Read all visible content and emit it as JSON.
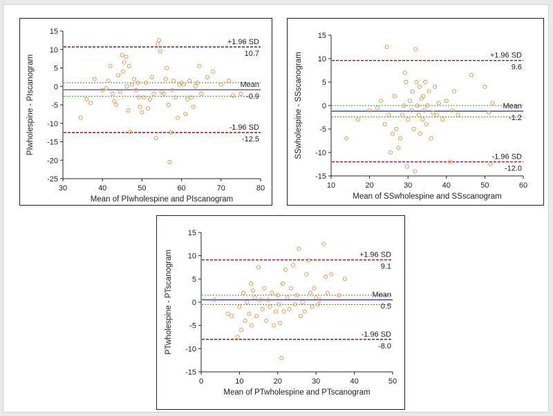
{
  "chart_data": [
    {
      "type": "scatter",
      "title": "",
      "xlabel": "Mean of PIwholespine and PIscanogram",
      "ylabel": "PIwholespine - PIscanogram",
      "xlim": [
        30,
        80
      ],
      "ylim": [
        -25,
        15
      ],
      "xticks": [
        30,
        40,
        50,
        60,
        70,
        80
      ],
      "yticks": [
        -25,
        -20,
        -15,
        -10,
        -5,
        0,
        5,
        10,
        15
      ],
      "reference_lines": [
        {
          "label": "+1.96 SD",
          "value": 10.7,
          "value_label": "10.7",
          "color": "#8b1a1a",
          "style": "dashed"
        },
        {
          "label": "Mean",
          "value": -0.9,
          "value_label": "-0.9",
          "color": "#2a2a9a",
          "style": "solid"
        },
        {
          "label": "-1.96 SD",
          "value": -12.5,
          "value_label": "-12.5",
          "color": "#8b1a1a",
          "style": "dashed"
        }
      ],
      "ci_lines": [
        1.0,
        -2.7
      ],
      "points": [
        [
          34.5,
          -8.5
        ],
        [
          36,
          -3.5
        ],
        [
          37,
          -4.5
        ],
        [
          38,
          2
        ],
        [
          40,
          -1
        ],
        [
          41,
          -0.5
        ],
        [
          41.5,
          1.5
        ],
        [
          42,
          5.5
        ],
        [
          42.5,
          -2
        ],
        [
          43,
          -4
        ],
        [
          43.5,
          -5
        ],
        [
          44,
          3
        ],
        [
          44.5,
          -1.5
        ],
        [
          45,
          8.5
        ],
        [
          45.2,
          4
        ],
        [
          45.5,
          6.5
        ],
        [
          46,
          8
        ],
        [
          46.2,
          0
        ],
        [
          46.5,
          -6.5
        ],
        [
          46.7,
          5.5
        ],
        [
          47,
          -12.3
        ],
        [
          47.5,
          0.5
        ],
        [
          48,
          2
        ],
        [
          48.5,
          -1
        ],
        [
          49,
          1
        ],
        [
          49.2,
          -3
        ],
        [
          49.5,
          -5.5
        ],
        [
          50,
          -7
        ],
        [
          50.5,
          -3
        ],
        [
          51,
          1
        ],
        [
          51.5,
          -6
        ],
        [
          52,
          -3.5
        ],
        [
          52.5,
          2.5
        ],
        [
          53,
          -2
        ],
        [
          53.5,
          -14
        ],
        [
          54,
          11.5
        ],
        [
          54.3,
          12.5
        ],
        [
          54.6,
          9.5
        ],
        [
          55,
          -1.5
        ],
        [
          55.5,
          -2
        ],
        [
          56,
          2
        ],
        [
          56.3,
          5
        ],
        [
          56.7,
          -5
        ],
        [
          57,
          -20.5
        ],
        [
          57.3,
          -12.5
        ],
        [
          57.6,
          -1
        ],
        [
          58,
          1.5
        ],
        [
          58.5,
          -3
        ],
        [
          59,
          -8.5
        ],
        [
          59.5,
          0.5
        ],
        [
          60,
          1
        ],
        [
          60.5,
          0.5
        ],
        [
          61,
          -7.5
        ],
        [
          61.5,
          -3.5
        ],
        [
          62,
          1.5
        ],
        [
          62.5,
          -3
        ],
        [
          63,
          -5.5
        ],
        [
          63.5,
          0
        ],
        [
          64,
          1
        ],
        [
          64.5,
          5.5
        ],
        [
          65,
          -2
        ],
        [
          66.5,
          2.5
        ],
        [
          68,
          4
        ],
        [
          70,
          0.5
        ],
        [
          72,
          1.5
        ],
        [
          73,
          -2.5
        ],
        [
          75,
          -2
        ]
      ]
    },
    {
      "type": "scatter",
      "title": "",
      "xlabel": "Mean of SSwholespine and SSscanogram",
      "ylabel": "SSwholespine - SSscanogram",
      "xlim": [
        10,
        60
      ],
      "ylim": [
        -15,
        15
      ],
      "xticks": [
        10,
        20,
        30,
        40,
        50,
        60
      ],
      "yticks": [
        -15,
        -10,
        -5,
        0,
        5,
        10,
        15
      ],
      "reference_lines": [
        {
          "label": "+1.96 SD",
          "value": 9.6,
          "value_label": "9.6",
          "color": "#8b1a1a",
          "style": "dashed"
        },
        {
          "label": "Mean",
          "value": -1.2,
          "value_label": "-1.2",
          "color": "#2a2a9a",
          "style": "solid"
        },
        {
          "label": "-1.96 SD",
          "value": -12.0,
          "value_label": "-12.0",
          "color": "#8b1a1a",
          "style": "dashed"
        }
      ],
      "ci_lines": [
        0.0,
        -2.4
      ],
      "points": [
        [
          14,
          -7
        ],
        [
          17,
          -3
        ],
        [
          20,
          -1
        ],
        [
          22,
          -0.5
        ],
        [
          23,
          1
        ],
        [
          24,
          -4
        ],
        [
          24.5,
          12.5
        ],
        [
          25,
          -2
        ],
        [
          25.5,
          -10
        ],
        [
          26,
          -6
        ],
        [
          26.5,
          2
        ],
        [
          27,
          -5
        ],
        [
          27.5,
          -9
        ],
        [
          28,
          -7
        ],
        [
          28.5,
          -2
        ],
        [
          29,
          0
        ],
        [
          29.2,
          7
        ],
        [
          29.5,
          5
        ],
        [
          29.8,
          -13
        ],
        [
          30,
          -3
        ],
        [
          30.5,
          1
        ],
        [
          31,
          -1
        ],
        [
          31.2,
          3
        ],
        [
          31.5,
          -5
        ],
        [
          31.8,
          -14
        ],
        [
          32,
          12
        ],
        [
          32.2,
          5
        ],
        [
          32.5,
          0
        ],
        [
          32.8,
          -2
        ],
        [
          33,
          4
        ],
        [
          33.2,
          -6
        ],
        [
          33.5,
          1.5
        ],
        [
          33.8,
          -3
        ],
        [
          34,
          2
        ],
        [
          34.2,
          -1
        ],
        [
          34.5,
          5
        ],
        [
          34.8,
          -4
        ],
        [
          35,
          0
        ],
        [
          35.5,
          3
        ],
        [
          36,
          -7
        ],
        [
          36.5,
          -1.5
        ],
        [
          37,
          4
        ],
        [
          37.5,
          -2
        ],
        [
          38,
          0.5
        ],
        [
          39,
          -3
        ],
        [
          40,
          1
        ],
        [
          41,
          -12
        ],
        [
          41.5,
          -1
        ],
        [
          42,
          3
        ],
        [
          43,
          -2
        ],
        [
          46.5,
          6.5
        ],
        [
          50,
          4
        ],
        [
          51,
          -1.5
        ],
        [
          51.5,
          -12.5
        ],
        [
          52,
          0.5
        ]
      ]
    },
    {
      "type": "scatter",
      "title": "",
      "xlabel": "Mean of PTwholespine and PTscanogram",
      "ylabel": "PTwholespine - PTscanogram",
      "xlim": [
        0,
        50
      ],
      "ylim": [
        -15,
        15
      ],
      "xticks": [
        0,
        10,
        20,
        30,
        40,
        50
      ],
      "yticks": [
        -15,
        -10,
        -5,
        0,
        5,
        10,
        15
      ],
      "reference_lines": [
        {
          "label": "+1.96 SD",
          "value": 9.1,
          "value_label": "9.1",
          "color": "#8b1a1a",
          "style": "dashed"
        },
        {
          "label": "Mean",
          "value": 0.5,
          "value_label": "0.5",
          "color": "#2a2a9a",
          "style": "solid"
        },
        {
          "label": "-1.96 SD",
          "value": -8.0,
          "value_label": "-8.0",
          "color": "#8b1a1a",
          "style": "dashed"
        }
      ],
      "ci_lines": [
        1.5,
        -0.5
      ],
      "points": [
        [
          3.5,
          0.5
        ],
        [
          7,
          -2.5
        ],
        [
          8,
          -3
        ],
        [
          9.5,
          -7.5
        ],
        [
          10,
          -1
        ],
        [
          10.5,
          -6
        ],
        [
          11,
          2
        ],
        [
          11.5,
          -4
        ],
        [
          12,
          0
        ],
        [
          12.5,
          -2.5
        ],
        [
          13,
          4
        ],
        [
          13.2,
          -5
        ],
        [
          13.5,
          2.5
        ],
        [
          14,
          1
        ],
        [
          14.5,
          -3
        ],
        [
          15,
          7.5
        ],
        [
          15.5,
          0.5
        ],
        [
          16,
          -1.5
        ],
        [
          16.5,
          3
        ],
        [
          17,
          -4
        ],
        [
          17.5,
          0.5
        ],
        [
          18,
          -1
        ],
        [
          18.5,
          2
        ],
        [
          19,
          -5
        ],
        [
          19.5,
          -2
        ],
        [
          20,
          1.5
        ],
        [
          20.3,
          -0.5
        ],
        [
          20.6,
          -4.5
        ],
        [
          21,
          -12
        ],
        [
          21.3,
          4
        ],
        [
          21.6,
          -2
        ],
        [
          22,
          7
        ],
        [
          22.5,
          1
        ],
        [
          23,
          -1.5
        ],
        [
          23.5,
          3
        ],
        [
          24,
          8
        ],
        [
          24.5,
          -0.5
        ],
        [
          25,
          1.5
        ],
        [
          25.5,
          11.5
        ],
        [
          26,
          -3
        ],
        [
          26.5,
          0
        ],
        [
          27,
          -2
        ],
        [
          27.5,
          6
        ],
        [
          28,
          9
        ],
        [
          28.5,
          2
        ],
        [
          29,
          -1
        ],
        [
          29.5,
          3
        ],
        [
          30,
          1
        ],
        [
          30.5,
          -0.5
        ],
        [
          31,
          0.5
        ],
        [
          32,
          12.5
        ],
        [
          32.5,
          5.5
        ],
        [
          33,
          2
        ],
        [
          34,
          6
        ],
        [
          36,
          1.5
        ],
        [
          37.5,
          5
        ]
      ]
    }
  ],
  "style": {
    "point_color": "#e0a060",
    "ci_color": "#3a8a3a",
    "axis_color": "#222222"
  }
}
